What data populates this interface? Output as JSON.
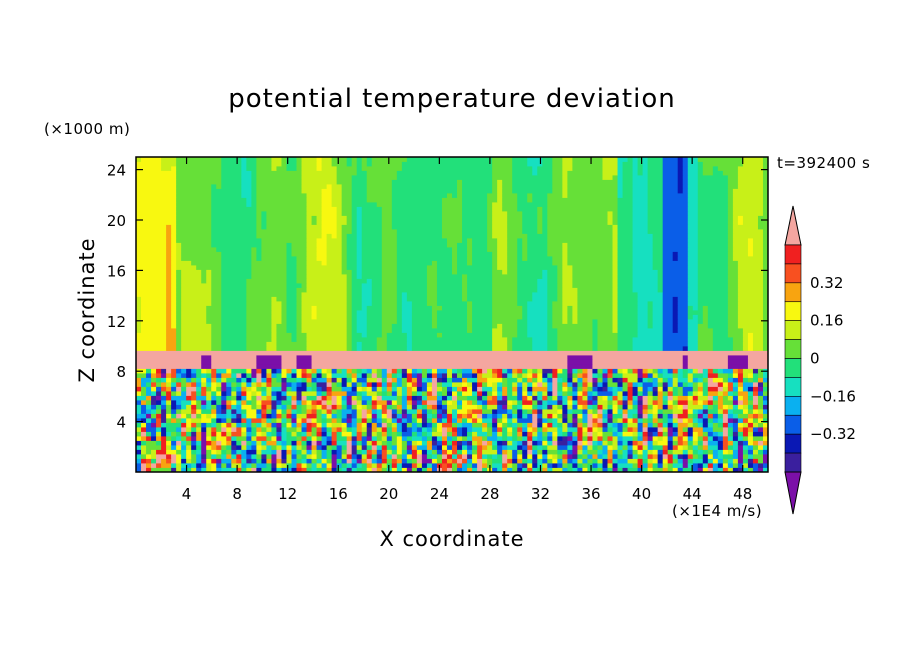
{
  "chart_data": {
    "type": "heatmap",
    "title": "potential temperature deviation",
    "xlabel": "X coordinate",
    "ylabel": "Z coordinate",
    "x_unit": "(×1E4 m/s)",
    "y_unit": "(×1000 m)",
    "time_label": "t=392400 s",
    "xlim": [
      0,
      50
    ],
    "ylim": [
      0,
      25
    ],
    "x_ticks": [
      4,
      8,
      12,
      16,
      20,
      24,
      28,
      32,
      36,
      40,
      44,
      48
    ],
    "y_ticks": [
      4,
      8,
      12,
      16,
      20,
      24
    ],
    "colorbar": {
      "levels": [
        -0.48,
        -0.4,
        -0.32,
        -0.24,
        -0.16,
        -0.08,
        0,
        0.08,
        0.16,
        0.24,
        0.32,
        0.4,
        0.48
      ],
      "tick_labels": [
        "0.32",
        "0.16",
        "0",
        "−0.16",
        "−0.32"
      ],
      "tick_values": [
        0.32,
        0.16,
        0,
        -0.16,
        -0.32
      ],
      "colors": [
        "#7b0fa8",
        "#3a1f9e",
        "#0a18b4",
        "#0a5ee8",
        "#0ab0f0",
        "#16e0c0",
        "#22e07a",
        "#66e038",
        "#c8f018",
        "#f8f810",
        "#f8a410",
        "#f85020",
        "#f02020",
        "#f4a6a0"
      ]
    },
    "description_regions": {
      "upper_layer": "smooth vertical bands, mostly -0.08 to 0.16",
      "inversion_band": "z 8-9.5, values above 0.4",
      "lower_layer": "turbulent mixing, full range -0.48 to 0.48"
    }
  },
  "labels": {
    "title": "potential temperature deviation",
    "xlabel": "X coordinate",
    "ylabel": "Z coordinate",
    "x_unit": "(×1E4 m/s)",
    "y_unit": "(×1000 m)",
    "time_label": "t=392400 s"
  }
}
